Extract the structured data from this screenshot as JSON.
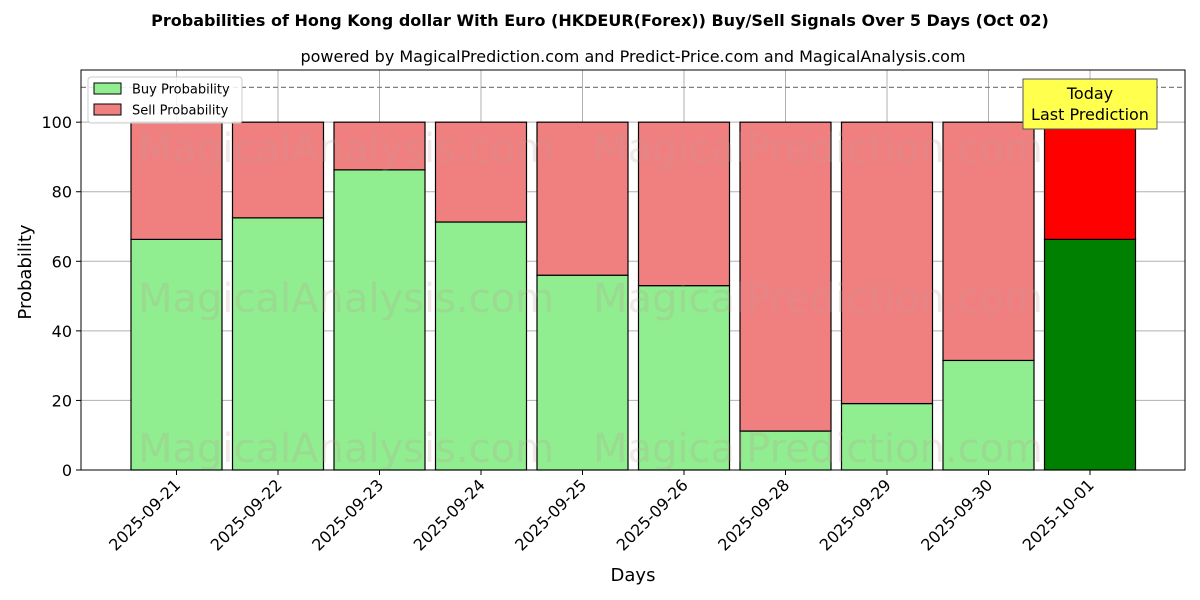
{
  "chart_data": {
    "type": "bar",
    "stacked": true,
    "title": "Probabilities of Hong Kong dollar With Euro (HKDEUR(Forex)) Buy/Sell Signals Over 5 Days (Oct 02)",
    "subtitle": "powered by MagicalPrediction.com and Predict-Price.com and MagicalAnalysis.com",
    "xlabel": "Days",
    "ylabel": "Probability",
    "ylim": [
      0,
      115
    ],
    "yticks": [
      0,
      20,
      40,
      60,
      80,
      100
    ],
    "grid": true,
    "reference_line": 110,
    "legend_position": "top-left",
    "categories": [
      "2025-09-21",
      "2025-09-22",
      "2025-09-23",
      "2025-09-24",
      "2025-09-25",
      "2025-09-26",
      "2025-09-28",
      "2025-09-29",
      "2025-09-30",
      "2025-10-01"
    ],
    "series": [
      {
        "name": "Buy Probability",
        "color": "#90ee90",
        "highlight_color": "#008000",
        "values": [
          66.3,
          72.5,
          86.3,
          71.3,
          56.0,
          53.0,
          11.2,
          19.1,
          31.5,
          66.3
        ]
      },
      {
        "name": "Sell Probability",
        "color": "#f08080",
        "highlight_color": "#ff0000",
        "values": [
          33.7,
          27.5,
          13.7,
          28.7,
          44.0,
          47.0,
          88.8,
          80.9,
          68.5,
          33.7
        ]
      }
    ],
    "highlight_index": 9,
    "annotation": {
      "lines": [
        "Today",
        "Last Prediction"
      ],
      "background": "#ffff4d"
    },
    "watermarks": [
      "MagicalAnalysis.com",
      "MagicalPrediction.com",
      "MagicalAnalysis.com",
      "MagicalPrediction.com",
      "MagicalAnalysis.com",
      "MagicalPrediction.com"
    ]
  }
}
